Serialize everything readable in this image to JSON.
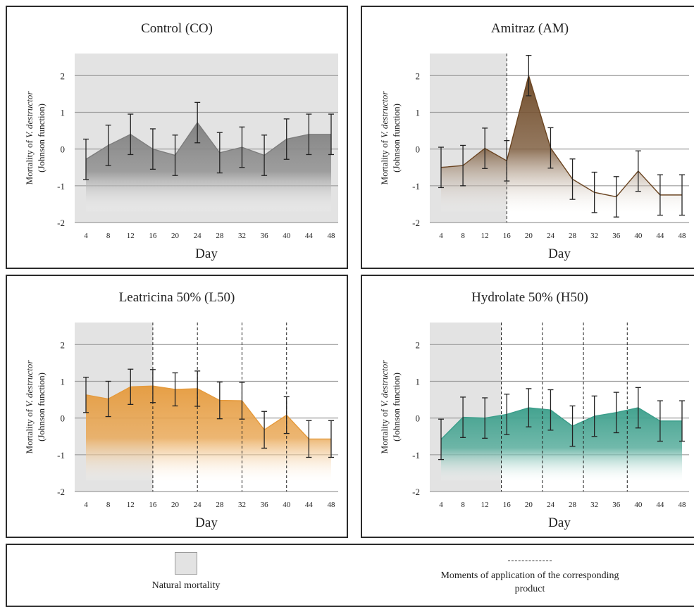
{
  "chart_data": [
    {
      "type": "area",
      "title": "Control (CO)",
      "xlabel": "Day",
      "ylabel": "Mortality of V. destructor (Johnson function)",
      "ylim": [
        -2,
        2.6
      ],
      "yticks": [
        2,
        1,
        0,
        -1,
        -2
      ],
      "categories": [
        "4",
        "8",
        "12",
        "16",
        "20",
        "24",
        "28",
        "32",
        "36",
        "40",
        "44",
        "48"
      ],
      "values": [
        -0.28,
        0.1,
        0.4,
        0.0,
        -0.17,
        0.72,
        -0.1,
        0.05,
        -0.17,
        0.27,
        0.4,
        0.4
      ],
      "error": [
        0.55,
        0.55,
        0.55,
        0.55,
        0.55,
        0.55,
        0.55,
        0.55,
        0.55,
        0.55,
        0.55,
        0.55
      ],
      "natural_mortality_through": "48",
      "application_days": [],
      "color": "#7d7d7d"
    },
    {
      "type": "area",
      "title": "Amitraz (AM)",
      "xlabel": "Day",
      "ylabel": "Mortality of V. destructor (Johnson function)",
      "ylim": [
        -2,
        2.6
      ],
      "yticks": [
        2,
        1,
        0,
        -1,
        -2
      ],
      "categories": [
        "4",
        "8",
        "12",
        "16",
        "20",
        "24",
        "28",
        "32",
        "36",
        "40",
        "44",
        "48"
      ],
      "values": [
        -0.5,
        -0.45,
        0.02,
        -0.32,
        2.0,
        0.03,
        -0.82,
        -1.18,
        -1.3,
        -0.6,
        -1.25,
        -1.25
      ],
      "error": [
        0.55,
        0.55,
        0.55,
        0.55,
        0.55,
        0.55,
        0.55,
        0.55,
        0.55,
        0.55,
        0.55,
        0.55
      ],
      "natural_mortality_through": "16",
      "application_days": [
        "16"
      ],
      "color": "#6b4522"
    },
    {
      "type": "area",
      "title": "Leatricina 50% (L50)",
      "xlabel": "Day",
      "ylabel": "Mortality of V. destructor (Johnson function)",
      "ylim": [
        -2,
        2.6
      ],
      "yticks": [
        2,
        1,
        0,
        -1,
        -2
      ],
      "categories": [
        "4",
        "8",
        "12",
        "16",
        "20",
        "24",
        "28",
        "32",
        "36",
        "40",
        "44",
        "48"
      ],
      "values": [
        0.63,
        0.52,
        0.85,
        0.87,
        0.78,
        0.8,
        0.48,
        0.47,
        -0.32,
        0.08,
        -0.57,
        -0.57
      ],
      "error": [
        0.48,
        0.48,
        0.48,
        0.45,
        0.45,
        0.48,
        0.5,
        0.5,
        0.5,
        0.5,
        0.5,
        0.5
      ],
      "natural_mortality_through": "16",
      "application_days": [
        "16",
        "24",
        "32",
        "40"
      ],
      "color": "#e59a3c"
    },
    {
      "type": "area",
      "title": "Hydrolate 50% (H50)",
      "xlabel": "Day",
      "ylabel": "Mortality of V. destructor (Johnson function)",
      "ylim": [
        -2,
        2.6
      ],
      "yticks": [
        2,
        1,
        0,
        -1,
        -2
      ],
      "categories": [
        "4",
        "8",
        "12",
        "16",
        "20",
        "24",
        "28",
        "32",
        "36",
        "40",
        "44",
        "48"
      ],
      "values": [
        -0.58,
        0.02,
        0.0,
        0.1,
        0.28,
        0.22,
        -0.22,
        0.05,
        0.15,
        0.28,
        -0.08,
        -0.08
      ],
      "error": [
        0.55,
        0.55,
        0.55,
        0.55,
        0.52,
        0.55,
        0.55,
        0.55,
        0.55,
        0.55,
        0.55,
        0.55
      ],
      "natural_mortality_through": "15",
      "application_days": [
        "15",
        "22.5",
        "30",
        "38"
      ],
      "color": "#3a9e8a"
    }
  ],
  "legend": {
    "natural": "Natural mortality",
    "moments": "Moments of application of the corresponding product"
  }
}
